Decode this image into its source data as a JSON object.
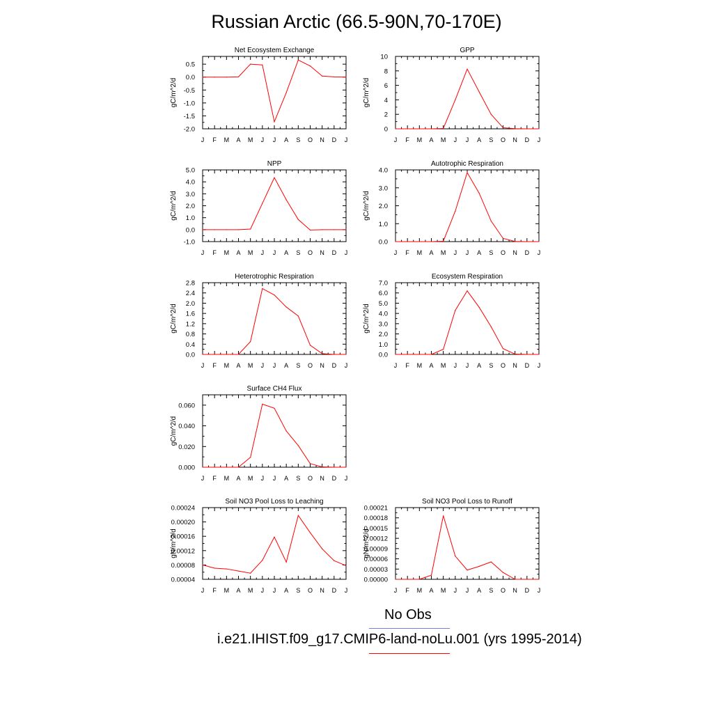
{
  "page": {
    "title": "Russian Arctic (66.5-90N,70-170E)",
    "line_color": "#ff0000",
    "legend": [
      {
        "label": "No Obs",
        "color": "#7a7ae6"
      },
      {
        "label": "i.e21.IHIST.f09_g17.CMIP6-land-noLu.001 (yrs 1995-2014)",
        "color": "#ff0000"
      }
    ]
  },
  "chart_data": [
    {
      "type": "line",
      "title": "Net Ecosystem Exchange",
      "ylabel": "gC/m^2/d",
      "categories": [
        "J",
        "F",
        "M",
        "A",
        "M",
        "J",
        "J",
        "A",
        "S",
        "O",
        "N",
        "D",
        "J"
      ],
      "ylim": [
        -2.0,
        0.8
      ],
      "yticks": [
        -2.0,
        -1.5,
        -1.0,
        -0.5,
        0.0,
        0.5
      ],
      "ytick_labels": [
        "-2.0",
        "-1.5",
        "-1.0",
        "-0.5",
        "0.0",
        "0.5"
      ],
      "series": [
        {
          "values": [
            0.0,
            0.0,
            0.0,
            0.01,
            0.5,
            0.47,
            -1.73,
            -0.6,
            0.66,
            0.43,
            0.04,
            0.01,
            0.0
          ]
        }
      ]
    },
    {
      "type": "line",
      "title": "GPP",
      "ylabel": "gC/m^2/d",
      "categories": [
        "J",
        "F",
        "M",
        "A",
        "M",
        "J",
        "J",
        "A",
        "S",
        "O",
        "N",
        "D",
        "J"
      ],
      "ylim": [
        0,
        10
      ],
      "yticks": [
        0,
        2,
        4,
        6,
        8,
        10
      ],
      "ytick_labels": [
        "0",
        "2",
        "4",
        "6",
        "8",
        "10"
      ],
      "series": [
        {
          "values": [
            0,
            0,
            0,
            0,
            0.05,
            4.0,
            8.25,
            5.1,
            2.0,
            0.15,
            0.02,
            0,
            0
          ]
        }
      ]
    },
    {
      "type": "line",
      "title": "NPP",
      "ylabel": "gC/m^2/d",
      "categories": [
        "J",
        "F",
        "M",
        "A",
        "M",
        "J",
        "J",
        "A",
        "S",
        "O",
        "N",
        "D",
        "J"
      ],
      "ylim": [
        -1.0,
        5.0
      ],
      "yticks": [
        -1.0,
        0.0,
        1.0,
        2.0,
        3.0,
        4.0,
        5.0
      ],
      "ytick_labels": [
        "-1.0",
        "0.0",
        "1.0",
        "2.0",
        "3.0",
        "4.0",
        "5.0"
      ],
      "series": [
        {
          "values": [
            0,
            0,
            0,
            0,
            0.05,
            2.2,
            4.35,
            2.5,
            0.85,
            -0.03,
            0,
            0,
            0
          ]
        }
      ]
    },
    {
      "type": "line",
      "title": "Autotrophic Respiration",
      "ylabel": "gC/m^2/d",
      "categories": [
        "J",
        "F",
        "M",
        "A",
        "M",
        "J",
        "J",
        "A",
        "S",
        "O",
        "N",
        "D",
        "J"
      ],
      "ylim": [
        0.0,
        4.0
      ],
      "yticks": [
        0.0,
        1.0,
        2.0,
        3.0,
        4.0
      ],
      "ytick_labels": [
        "0.0",
        "1.0",
        "2.0",
        "3.0",
        "4.0"
      ],
      "series": [
        {
          "values": [
            0,
            0,
            0,
            0,
            0.02,
            1.7,
            3.85,
            2.7,
            1.15,
            0.18,
            0.01,
            0,
            0
          ]
        }
      ]
    },
    {
      "type": "line",
      "title": "Heterotrophic Respiration",
      "ylabel": "gC/m^2/d",
      "categories": [
        "J",
        "F",
        "M",
        "A",
        "M",
        "J",
        "J",
        "A",
        "S",
        "O",
        "N",
        "D",
        "J"
      ],
      "ylim": [
        0.0,
        2.8
      ],
      "yticks": [
        0.0,
        0.4,
        0.8,
        1.2,
        1.6,
        2.0,
        2.4,
        2.8
      ],
      "ytick_labels": [
        "0.0",
        "0.4",
        "0.8",
        "1.2",
        "1.6",
        "2.0",
        "2.4",
        "2.8"
      ],
      "series": [
        {
          "values": [
            0,
            0,
            0,
            0,
            0.5,
            2.57,
            2.32,
            1.85,
            1.5,
            0.36,
            0.03,
            0,
            0
          ]
        }
      ]
    },
    {
      "type": "line",
      "title": "Ecosystem Respiration",
      "ylabel": "gC/m^2/d",
      "categories": [
        "J",
        "F",
        "M",
        "A",
        "M",
        "J",
        "J",
        "A",
        "S",
        "O",
        "N",
        "D",
        "J"
      ],
      "ylim": [
        0.0,
        7.0
      ],
      "yticks": [
        0.0,
        1.0,
        2.0,
        3.0,
        4.0,
        5.0,
        6.0,
        7.0
      ],
      "ytick_labels": [
        "0.0",
        "1.0",
        "2.0",
        "3.0",
        "4.0",
        "5.0",
        "6.0",
        "7.0"
      ],
      "series": [
        {
          "values": [
            0,
            0,
            0,
            0,
            0.5,
            4.3,
            6.2,
            4.6,
            2.7,
            0.56,
            0.03,
            0,
            0
          ]
        }
      ]
    },
    {
      "type": "line",
      "title": "Surface CH4 Flux",
      "ylabel": "gC/m^2/d",
      "categories": [
        "J",
        "F",
        "M",
        "A",
        "M",
        "J",
        "J",
        "A",
        "S",
        "O",
        "N",
        "D",
        "J"
      ],
      "ylim": [
        0.0,
        0.07
      ],
      "yticks": [
        0.0,
        0.02,
        0.04,
        0.06
      ],
      "ytick_labels": [
        "0.000",
        "0.020",
        "0.040",
        "0.060"
      ],
      "series": [
        {
          "values": [
            0,
            0,
            0,
            0,
            0.0095,
            0.061,
            0.057,
            0.035,
            0.021,
            0.0035,
            0.0003,
            0,
            0
          ]
        }
      ]
    },
    {
      "type": "line",
      "title": "Soil NO3 Pool Loss to Leaching",
      "ylabel": "gN/m^2/d",
      "categories": [
        "J",
        "F",
        "M",
        "A",
        "M",
        "J",
        "J",
        "A",
        "S",
        "O",
        "N",
        "D",
        "J"
      ],
      "ylim": [
        4e-05,
        0.00024
      ],
      "yticks": [
        4e-05,
        8e-05,
        0.00012,
        0.00016,
        0.0002,
        0.00024
      ],
      "ytick_labels": [
        "0.00004",
        "0.00008",
        "0.00012",
        "0.00016",
        "0.00020",
        "0.00024"
      ],
      "series": [
        {
          "values": [
            8e-05,
            7.1e-05,
            6.9e-05,
            6.3e-05,
            5.7e-05,
            9.3e-05,
            0.000158,
            8.8e-05,
            0.000218,
            0.00017,
            0.000125,
            9.2e-05,
            7.8e-05
          ]
        }
      ]
    },
    {
      "type": "line",
      "title": "Soil NO3 Pool Loss to Runoff",
      "ylabel": "gN/m^2/d",
      "categories": [
        "J",
        "F",
        "M",
        "A",
        "M",
        "J",
        "J",
        "A",
        "S",
        "O",
        "N",
        "D",
        "J"
      ],
      "ylim": [
        0.0,
        0.00021
      ],
      "yticks": [
        0.0,
        3e-05,
        6e-05,
        9e-05,
        0.00012,
        0.00015,
        0.00018,
        0.00021
      ],
      "ytick_labels": [
        "0.00000",
        "0.00003",
        "0.00006",
        "0.00009",
        "0.00012",
        "0.00015",
        "0.00018",
        "0.00021"
      ],
      "series": [
        {
          "values": [
            0,
            0,
            0,
            1.2e-05,
            0.000186,
            6.8e-05,
            2.7e-05,
            3.8e-05,
            5.1e-05,
            2e-05,
            0,
            0,
            0
          ]
        }
      ]
    }
  ]
}
